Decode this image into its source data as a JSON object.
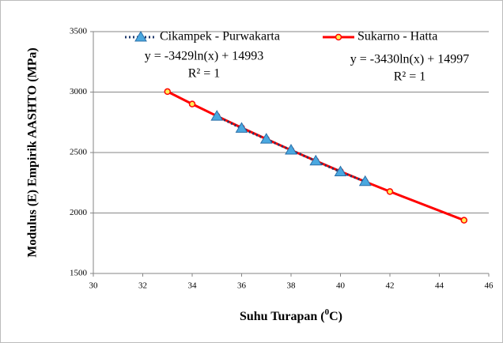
{
  "chart_data": {
    "type": "line",
    "x_label": {
      "prefix": "Suhu Turapan (",
      "sup": "0",
      "suffix": "C)"
    },
    "y_label": "Modulus (E) Empirik AASHTO (MPa)",
    "xlim": [
      30,
      46
    ],
    "xticks": [
      30,
      32,
      34,
      36,
      38,
      40,
      42,
      44,
      46
    ],
    "ylim": [
      1500,
      3500
    ],
    "yticks": [
      1500,
      2000,
      2500,
      3000,
      3500
    ],
    "grid": true,
    "series": [
      {
        "name": "Cikampek - Purwakarta",
        "color": "#1f3a6e",
        "marker_color": "#4aa8e0",
        "marker": "triangle",
        "dash": true,
        "x": [
          35,
          36,
          37,
          38,
          39,
          40,
          41
        ],
        "values": [
          2800,
          2700,
          2610,
          2520,
          2430,
          2340,
          2260
        ]
      },
      {
        "name": "Sukarno - Hatta",
        "color": "#ff0000",
        "marker_color": "#ffee55",
        "marker": "circle",
        "dash": false,
        "x": [
          33,
          34,
          35,
          36,
          37,
          38,
          39,
          40,
          41,
          42,
          45
        ],
        "values": [
          3004,
          2901,
          2802,
          2705,
          2612,
          2520,
          2431,
          2344,
          2259,
          2177,
          1940
        ]
      }
    ],
    "annotations": [
      "y = -3429ln(x) + 14993",
      "R² = 1",
      "y = -3430ln(x) + 14997",
      "R² = 1"
    ]
  }
}
